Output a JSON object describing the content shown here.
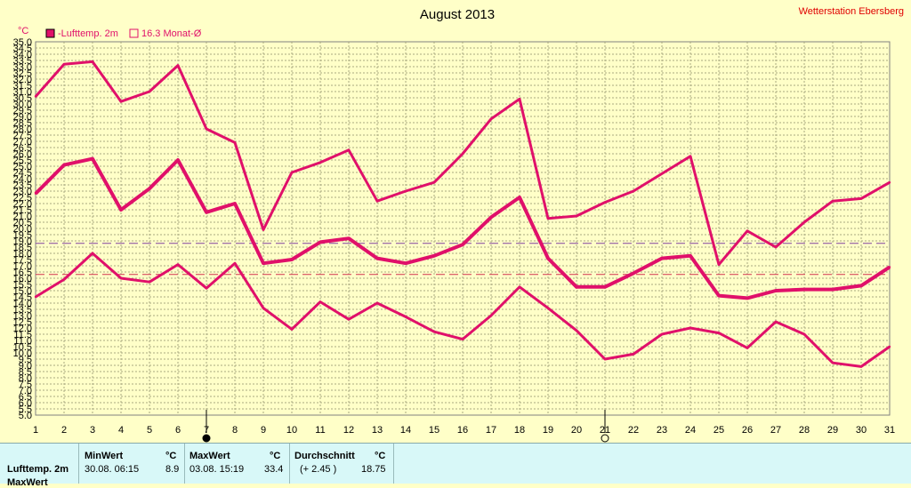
{
  "chart_data": {
    "type": "line",
    "title": "August 2013",
    "station": "Wetterstation Ebersberg",
    "ylabel": "°C",
    "ylim": [
      5.0,
      35.0
    ],
    "ytick_step": 0.5,
    "x": [
      1,
      2,
      3,
      4,
      5,
      6,
      7,
      8,
      9,
      10,
      11,
      12,
      13,
      14,
      15,
      16,
      17,
      18,
      19,
      20,
      21,
      22,
      23,
      24,
      25,
      26,
      27,
      28,
      29,
      30,
      31
    ],
    "grid": true,
    "legend": [
      {
        "label": "-Lufttemp. 2m",
        "marker": "filled-square",
        "color": "#e0106a"
      },
      {
        "label": "16.3 Monat-Ø",
        "marker": "open-square",
        "color": "#e0106a"
      }
    ],
    "series": [
      {
        "role": "max",
        "color": "#e0106a",
        "values": [
          30.6,
          33.2,
          33.4,
          30.2,
          31.0,
          33.1,
          28.0,
          26.9,
          19.9,
          24.5,
          25.3,
          26.3,
          22.2,
          23.0,
          23.7,
          26.0,
          28.8,
          30.4,
          20.8,
          21.0,
          22.1,
          23.0,
          24.4,
          25.8,
          17.1,
          19.8,
          18.5,
          20.5,
          22.2,
          22.4,
          23.7
        ]
      },
      {
        "role": "mean",
        "color": "#e0106a",
        "thick": true,
        "values": [
          22.8,
          25.1,
          25.6,
          21.5,
          23.2,
          25.5,
          21.3,
          22.0,
          17.2,
          17.5,
          18.9,
          19.2,
          17.6,
          17.2,
          17.8,
          18.7,
          20.9,
          22.5,
          17.6,
          15.3,
          15.3,
          16.4,
          17.6,
          17.8,
          14.6,
          14.4,
          15.0,
          15.1,
          15.1,
          15.4,
          16.9
        ]
      },
      {
        "role": "min",
        "color": "#e0106a",
        "values": [
          14.5,
          15.9,
          18.0,
          16.0,
          15.7,
          17.1,
          15.2,
          17.2,
          13.6,
          11.9,
          14.1,
          12.7,
          14.0,
          12.9,
          11.7,
          11.1,
          13.0,
          15.3,
          13.6,
          11.8,
          9.5,
          9.9,
          11.5,
          12.0,
          11.6,
          10.4,
          12.5,
          11.5,
          9.2,
          8.9,
          10.5
        ]
      }
    ],
    "reference_lines": [
      {
        "value": 18.8,
        "color": "#8040a0",
        "style": "dashed"
      },
      {
        "value": 16.3,
        "color": "#d03050",
        "style": "dashed"
      }
    ],
    "markers": [
      {
        "x": 7,
        "symbol": "new-moon"
      },
      {
        "x": 21,
        "symbol": "full-moon"
      }
    ]
  },
  "stats": {
    "row_label": "Lufttemp. 2m",
    "row2_label": "MaxWert",
    "min": {
      "header": "MinWert",
      "unit": "°C",
      "datetime": "30.08.  06:15",
      "value": "8.9"
    },
    "max": {
      "header": "MaxWert",
      "unit": "°C",
      "datetime": "03.08.  15:19",
      "value": "33.4"
    },
    "avg": {
      "header": "Durchschnitt",
      "unit": "°C",
      "delta": "(+ 2.45 )",
      "value": "18.75"
    }
  }
}
